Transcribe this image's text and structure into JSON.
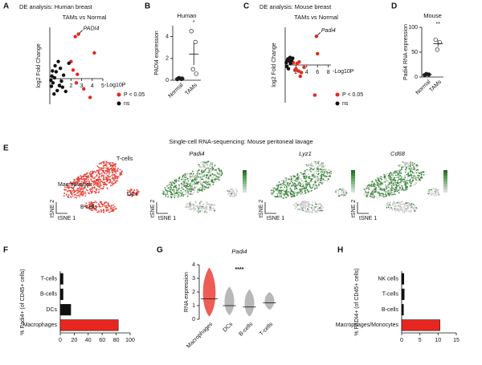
{
  "chart_data": [
    {
      "type": "scatter",
      "letter": "A",
      "title": "DE analysis: Human breast",
      "subtitle": "TAMs vs Normal",
      "x_label": "-Log10P",
      "y_label": "log2 Fold Change",
      "xlim": [
        0,
        5
      ],
      "xticks": [
        1,
        2,
        3,
        4,
        5
      ],
      "ylim": [
        -3,
        6
      ],
      "series": [
        {
          "name": "P < 0.05",
          "color": "#e8261f",
          "x": [
            2.7,
            2.4,
            4.2,
            2.0,
            2.2,
            3.2,
            3.8,
            2.5,
            2.6
          ],
          "y": [
            5.2,
            4.9,
            3.0,
            2.0,
            1.0,
            -1.2,
            -2.2,
            -0.5,
            0.5
          ]
        },
        {
          "name": "ns",
          "color": "#111111",
          "x": [
            0.2,
            0.3,
            0.5,
            0.8,
            1.0,
            1.2,
            1.5,
            0.4,
            1.8,
            0.6,
            0.1,
            0.9,
            1.3,
            0.7,
            0.25,
            0.45,
            1.1,
            0.15
          ],
          "y": [
            0.3,
            -0.5,
            1.5,
            2.0,
            1.2,
            -1.0,
            -1.5,
            -1.8,
            1.8,
            0.8,
            -0.2,
            -0.8,
            0.4,
            -1.4,
            0.9,
            0.1,
            -0.3,
            -0.9
          ]
        }
      ],
      "annotation": {
        "text": "PADI4",
        "x": 2.7,
        "y": 5.2
      }
    },
    {
      "type": "dot",
      "letter": "B",
      "title": "Human",
      "y_label": "PADI4 expression",
      "categories": [
        "Normal",
        "TAMs"
      ],
      "ylim": [
        0,
        5
      ],
      "yticks": [
        0,
        2,
        4
      ],
      "groups": [
        [
          0.1,
          0.12,
          0.2,
          0.15
        ],
        [
          4.5,
          3.5,
          1.0,
          0.6
        ]
      ],
      "means": [
        0.14,
        2.4
      ],
      "errors": [
        0.05,
        1.0
      ],
      "annotation": "*"
    },
    {
      "type": "scatter",
      "letter": "C",
      "title": "DE analysis: Mouse breast",
      "subtitle": "TAMs vs Normal",
      "x_label": "-Log10P",
      "y_label": "log2 Fold Change",
      "xlim": [
        0,
        8.5
      ],
      "xticks": [
        2,
        4,
        6,
        8
      ],
      "ylim": [
        -5,
        5
      ],
      "series": [
        {
          "name": "P < 0.05",
          "color": "#e8261f",
          "x": [
            5.8,
            6.0,
            5.5,
            2.0,
            2.5,
            3.0,
            1.5,
            2.2,
            3.5,
            2.8,
            1.8,
            2.6
          ],
          "y": [
            3.8,
            1.5,
            -4.0,
            -0.5,
            -0.8,
            -1.0,
            0.3,
            0.2,
            -0.3,
            -1.5,
            -0.7,
            0.4
          ]
        },
        {
          "name": "ns",
          "color": "#111111",
          "x": [
            0.2,
            0.5,
            0.8,
            1.0,
            0.3,
            1.2,
            0.6,
            1.4,
            0.9,
            0.4
          ],
          "y": [
            0.3,
            0.8,
            0.5,
            0.2,
            -0.2,
            0.6,
            -0.5,
            0.9,
            1.0,
            0.6
          ]
        }
      ],
      "annotation": {
        "text": "Padi4",
        "x": 5.8,
        "y": 3.8
      }
    },
    {
      "type": "dot",
      "letter": "D",
      "title": "Mouse",
      "y_label": "Padi4 RNA expression",
      "categories": [
        "Normal",
        "TAMs"
      ],
      "ylim": [
        0,
        100
      ],
      "yticks": [
        0,
        50,
        100
      ],
      "groups": [
        [
          4,
          5,
          6
        ],
        [
          75,
          70,
          55
        ]
      ],
      "means": [
        5,
        67
      ],
      "errors": [
        0.6,
        6
      ],
      "annotation": "**"
    },
    {
      "type": "barh",
      "letter": "F",
      "y_label": "% Padi4+ (of CD45+ cells)",
      "categories": [
        "T-cells",
        "B-cells",
        "DCs",
        "Macrophages"
      ],
      "values": [
        4,
        4,
        15,
        83
      ],
      "colors": [
        "#111111",
        "#111111",
        "#111111",
        "#e8261f"
      ],
      "xlim": [
        0,
        100
      ],
      "xticks": [
        0,
        20,
        40,
        60,
        80,
        100
      ]
    },
    {
      "type": "strip",
      "letter": "G",
      "title": "Padi4",
      "y_label": "RNA expression",
      "categories": [
        "Macrophages",
        "DCs",
        "B-cells",
        "T-cells"
      ],
      "ranges": [
        [
          0.2,
          3.8
        ],
        [
          0.3,
          2.4
        ],
        [
          0.2,
          2.2
        ],
        [
          0.7,
          2.0
        ]
      ],
      "means": [
        1.5,
        1.0,
        0.9,
        1.2
      ],
      "colors": [
        "#e8261f",
        "#333333",
        "#333333",
        "#333333"
      ],
      "ylim": [
        0,
        4
      ],
      "yticks": [
        0,
        1,
        2,
        3,
        4
      ],
      "annotation": "****"
    },
    {
      "type": "barh",
      "letter": "H",
      "y_label": "% PADI4+ (of CD45+ cells)",
      "categories": [
        "NK cells",
        "T-cells",
        "B-cells",
        "Macrophages/Monocytes"
      ],
      "values": [
        0.6,
        0.7,
        0.5,
        10.5
      ],
      "colors": [
        "#111111",
        "#111111",
        "#111111",
        "#e8261f"
      ],
      "xlim": [
        0,
        15
      ],
      "xticks": [
        0,
        5,
        10,
        15
      ]
    }
  ],
  "panel_e": {
    "letter": "E",
    "title": "Single-cell RNA-sequencing: Mouse peritoneal lavage",
    "cell_labels": [
      "T-cells",
      "Macrophages",
      "DCs",
      "B-cells"
    ],
    "gene_titles": [
      "Padi4",
      "Lyz1",
      "Cd68"
    ],
    "axis_y": "tSNE 2",
    "axis_x": "tSNE 1"
  }
}
